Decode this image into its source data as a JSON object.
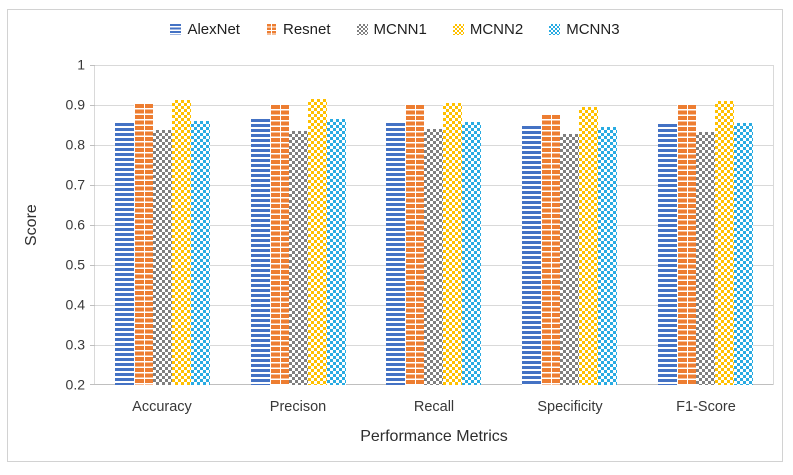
{
  "chart_data": {
    "type": "bar",
    "title": "",
    "xlabel": "Performance Metrics",
    "ylabel": "Score",
    "categories": [
      "Accuracy",
      "Precison",
      "Recall",
      "Specificity",
      "F1-Score"
    ],
    "series": [
      {
        "name": "AlexNet",
        "pattern": "hlines",
        "color": "#4472C4",
        "values": [
          0.855,
          0.866,
          0.855,
          0.847,
          0.853
        ]
      },
      {
        "name": "Resnet",
        "pattern": "brick",
        "color": "#ED7D31",
        "values": [
          0.902,
          0.899,
          0.899,
          0.876,
          0.899
        ]
      },
      {
        "name": "MCNN1",
        "pattern": "checker",
        "color": "#7F7F7F",
        "values": [
          0.838,
          0.834,
          0.841,
          0.828,
          0.833
        ]
      },
      {
        "name": "MCNN2",
        "pattern": "checker",
        "color": "#FFC000",
        "values": [
          0.912,
          0.916,
          0.906,
          0.896,
          0.911
        ]
      },
      {
        "name": "MCNN3",
        "pattern": "checker",
        "color": "#29ABE2",
        "values": [
          0.86,
          0.864,
          0.857,
          0.845,
          0.855
        ]
      }
    ],
    "ylim": [
      0.2,
      1.0
    ],
    "ytick_labels": [
      "1",
      "0.9",
      "0.8",
      "0.7",
      "0.6",
      "0.5",
      "0.4",
      "0.3",
      "0.2"
    ],
    "yticks": [
      1.0,
      0.9,
      0.8,
      0.7,
      0.6,
      0.5,
      0.4,
      0.3,
      0.2
    ],
    "grid": true,
    "legend_position": "top",
    "colors": {
      "gridline": "#d9d9d9",
      "axis_line": "#bfbfbf",
      "text": "#383838"
    }
  }
}
